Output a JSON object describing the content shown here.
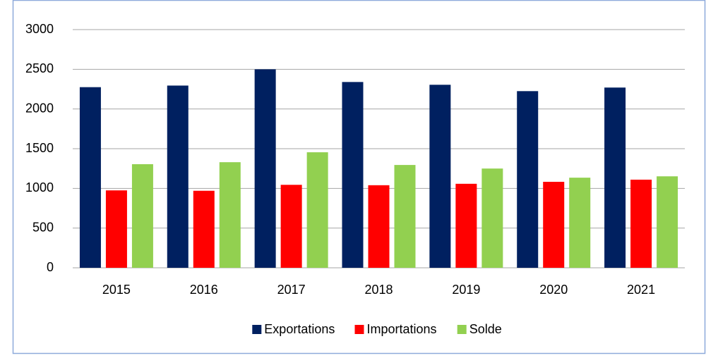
{
  "chart_data": {
    "type": "bar",
    "categories": [
      "2015",
      "2016",
      "2017",
      "2018",
      "2019",
      "2020",
      "2021"
    ],
    "series": [
      {
        "name": "Exportations",
        "color": "#002060",
        "values": [
          2275,
          2295,
          2500,
          2340,
          2305,
          2225,
          2270
        ]
      },
      {
        "name": "Importations",
        "color": "#ff0000",
        "values": [
          975,
          970,
          1045,
          1040,
          1058,
          1083,
          1110
        ]
      },
      {
        "name": "Solde",
        "color": "#92d050",
        "values": [
          1305,
          1330,
          1455,
          1295,
          1250,
          1135,
          1152
        ]
      }
    ],
    "ylim": [
      0,
      3000
    ],
    "yticks": [
      0,
      500,
      1000,
      1500,
      2000,
      2500,
      3000
    ],
    "grid": true,
    "legend": "bottom"
  }
}
